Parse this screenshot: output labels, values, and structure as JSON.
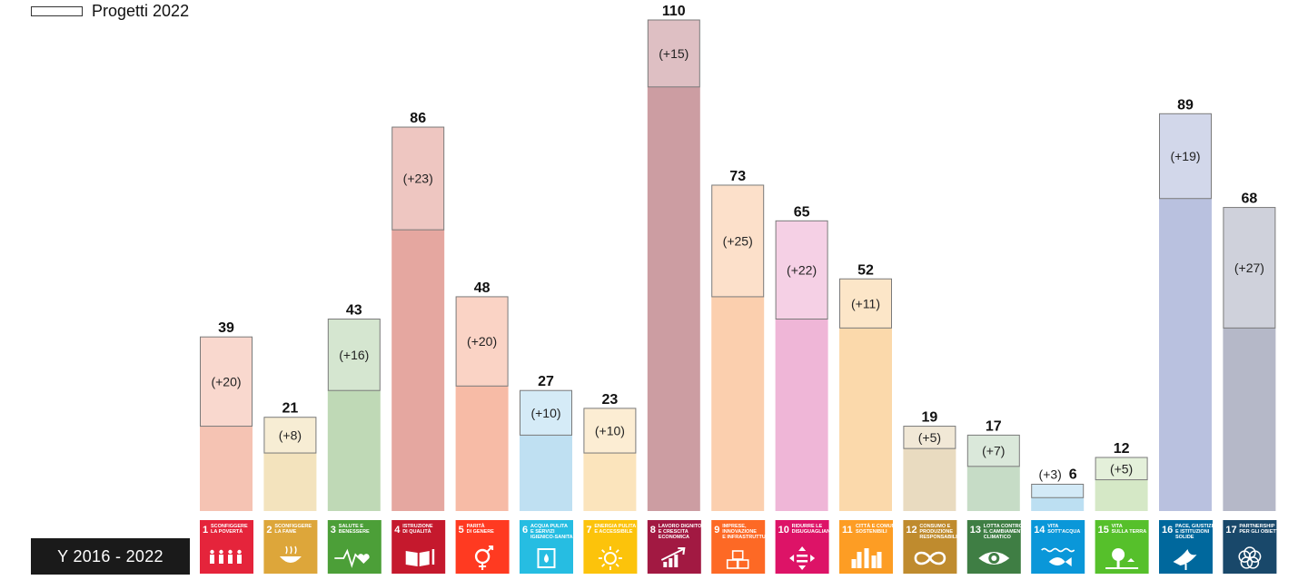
{
  "legend": {
    "label": "Progetti 2022"
  },
  "period_label": "Y 2016 - 2022",
  "chart_data": {
    "type": "bar",
    "stacked": true,
    "ylim": [
      0,
      110
    ],
    "legend_position": "top-left",
    "grid": false,
    "series": [
      {
        "name": "",
        "values": [
          19,
          13,
          27,
          63,
          28,
          17,
          13,
          95,
          48,
          43,
          41,
          14,
          10,
          3,
          7,
          70,
          41
        ]
      },
      {
        "name": "Progetti 2022",
        "values": [
          20,
          8,
          16,
          23,
          20,
          10,
          10,
          15,
          25,
          22,
          11,
          5,
          7,
          3,
          5,
          19,
          27
        ]
      }
    ],
    "totals": [
      39,
      21,
      43,
      86,
      48,
      27,
      23,
      110,
      73,
      65,
      52,
      19,
      17,
      6,
      12,
      89,
      68
    ],
    "increment_labels": [
      "(+20)",
      "(+8)",
      "(+16)",
      "(+23)",
      "(+20)",
      "(+10)",
      "(+10)",
      "(+15)",
      "(+25)",
      "(+22)",
      "(+11)",
      "(+5)",
      "(+7)",
      "(+3)",
      "(+5)",
      "(+19)",
      "(+27)"
    ],
    "categories": [
      {
        "num": "1",
        "name": [
          "SCONFIGGERE",
          "LA POVERTÀ"
        ],
        "color": "#e5243b",
        "icon": "people-icon"
      },
      {
        "num": "2",
        "name": [
          "SCONFIGGERE",
          "LA FAME"
        ],
        "color": "#dda63a",
        "icon": "bowl-icon"
      },
      {
        "num": "3",
        "name": [
          "SALUTE E",
          "BENESSERE"
        ],
        "color": "#4c9f38",
        "icon": "heartbeat-icon"
      },
      {
        "num": "4",
        "name": [
          "ISTRUZIONE",
          "DI QUALITÀ"
        ],
        "color": "#c5192d",
        "icon": "book-icon"
      },
      {
        "num": "5",
        "name": [
          "PARITÀ",
          "DI GENERE"
        ],
        "color": "#ff3a21",
        "icon": "gender-icon"
      },
      {
        "num": "6",
        "name": [
          "ACQUA PULITA",
          "E SERVIZI",
          "IGIENICO-SANITARI"
        ],
        "color": "#26bde2",
        "icon": "water-drop-icon"
      },
      {
        "num": "7",
        "name": [
          "ENERGIA PULITA",
          "E ACCESSIBILE"
        ],
        "color": "#fcc30b",
        "icon": "sun-power-icon"
      },
      {
        "num": "8",
        "name": [
          "LAVORO DIGNITOSO",
          "E CRESCITA",
          "ECONOMICA"
        ],
        "color": "#a21942",
        "icon": "growth-chart-icon"
      },
      {
        "num": "9",
        "name": [
          "IMPRESE,",
          "INNOVAZIONE",
          "E INFRASTRUTTURE"
        ],
        "color": "#fd6925",
        "icon": "cubes-icon"
      },
      {
        "num": "10",
        "name": [
          "RIDURRE LE",
          "DISUGUAGLIANZE"
        ],
        "color": "#dd1367",
        "icon": "equality-arrows-icon"
      },
      {
        "num": "11",
        "name": [
          "CITTÀ E COMUNITÀ",
          "SOSTENIBILI"
        ],
        "color": "#fd9d24",
        "icon": "city-icon"
      },
      {
        "num": "12",
        "name": [
          "CONSUMO E",
          "PRODUZIONE",
          "RESPONSABILI"
        ],
        "color": "#bf8b2e",
        "icon": "infinity-icon"
      },
      {
        "num": "13",
        "name": [
          "LOTTA CONTRO",
          "IL CAMBIAMENTO",
          "CLIMATICO"
        ],
        "color": "#3f7e44",
        "icon": "eye-globe-icon"
      },
      {
        "num": "14",
        "name": [
          "VITA",
          "SOTT'ACQUA"
        ],
        "color": "#0a97d9",
        "icon": "fish-icon"
      },
      {
        "num": "15",
        "name": [
          "VITA",
          "SULLA TERRA"
        ],
        "color": "#56c02b",
        "icon": "tree-icon"
      },
      {
        "num": "16",
        "name": [
          "PACE, GIUSTIZIA",
          "E ISTITUZIONI",
          "SOLIDE"
        ],
        "color": "#00689d",
        "icon": "dove-icon"
      },
      {
        "num": "17",
        "name": [
          "PARTNERSHIP",
          "PER GLI OBIETTIVI"
        ],
        "color": "#19486a",
        "icon": "flower-rings-icon"
      }
    ],
    "bar_colors": [
      "#f5c3b3",
      "#f3e3bd",
      "#bfd9b6",
      "#e5a7a0",
      "#f7bba6",
      "#bfe0f2",
      "#fbe4bc",
      "#cc9da2",
      "#fbcfae",
      "#efb6d7",
      "#fbd9ab",
      "#e9dbc0",
      "#c6dcc6",
      "#bcdff2",
      "#d5e8c6",
      "#b9c1df",
      "#b5b8c8"
    ]
  }
}
